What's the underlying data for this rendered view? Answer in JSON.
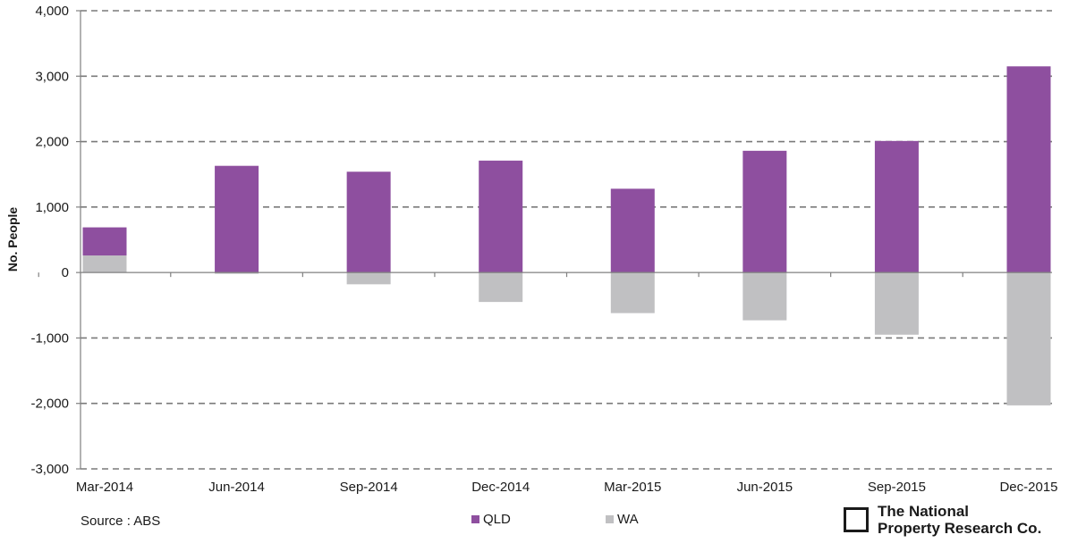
{
  "chart_data": {
    "type": "bar",
    "stacked": true,
    "ylabel": "No. People",
    "ylim": [
      -3000,
      4000
    ],
    "yticks": [
      -3000,
      -2000,
      -1000,
      0,
      1000,
      2000,
      3000,
      4000
    ],
    "ytick_labels": [
      "-3,000",
      "-2,000",
      "-1,000",
      "0",
      "1,000",
      "2,000",
      "3,000",
      "4,000"
    ],
    "grid": true,
    "categories": [
      "Mar-2014",
      "Jun-2014",
      "Sep-2014",
      "Dec-2014",
      "Mar-2015",
      "Jun-2015",
      "Sep-2015",
      "Dec-2015"
    ],
    "series": [
      {
        "name": "QLD",
        "color": "#8e4f9f",
        "values": [
          430,
          1630,
          1540,
          1710,
          1280,
          1860,
          2010,
          3150
        ]
      },
      {
        "name": "WA",
        "color": "#c0c0c2",
        "values": [
          260,
          -20,
          -180,
          -450,
          -620,
          -730,
          -950,
          -2030
        ]
      }
    ],
    "legend_position": "bottom-center"
  },
  "footer": {
    "source": "Source : ABS",
    "logo_line1": "The National",
    "logo_line2": "Property Research Co."
  }
}
